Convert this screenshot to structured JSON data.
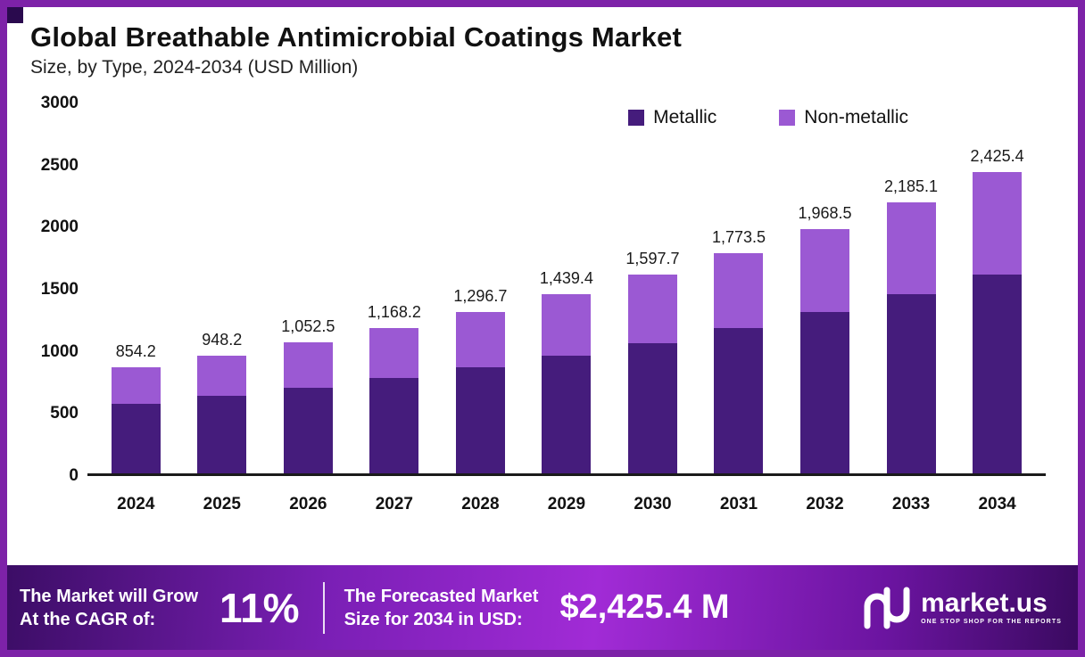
{
  "header": {
    "title": "Global Breathable Antimicrobial Coatings Market",
    "subtitle": "Size, by Type, 2024-2034 (USD Million)"
  },
  "legend": [
    {
      "label": "Metallic",
      "color": "#451c7c"
    },
    {
      "label": "Non-metallic",
      "color": "#9b59d3"
    }
  ],
  "chart_data": {
    "type": "bar",
    "stacked": true,
    "title": "Global Breathable Antimicrobial Coatings Market Size, by Type, 2024-2034 (USD Million)",
    "xlabel": "",
    "ylabel": "",
    "ylim": [
      0,
      3000
    ],
    "yticks": [
      0,
      500,
      1000,
      1500,
      2000,
      2500,
      3000
    ],
    "categories": [
      "2024",
      "2025",
      "2026",
      "2027",
      "2028",
      "2029",
      "2030",
      "2031",
      "2032",
      "2033",
      "2034"
    ],
    "series": [
      {
        "name": "Metallic",
        "color": "#451c7c",
        "values": [
          560,
          625,
          690,
          765,
          855,
          950,
          1050,
          1170,
          1300,
          1440,
          1600
        ]
      },
      {
        "name": "Non-metallic",
        "color": "#9b59d3",
        "values": [
          294.2,
          323.2,
          362.5,
          403.2,
          441.7,
          489.4,
          547.7,
          603.5,
          668.5,
          745.1,
          825.4
        ]
      }
    ],
    "totals": [
      854.2,
      948.2,
      1052.5,
      1168.2,
      1296.7,
      1439.4,
      1597.7,
      1773.5,
      1968.5,
      2185.1,
      2425.4
    ],
    "total_labels": [
      "854.2",
      "948.2",
      "1,052.5",
      "1,168.2",
      "1,296.7",
      "1,439.4",
      "1,597.7",
      "1,773.5",
      "1,968.5",
      "2,185.1",
      "2,425.4"
    ],
    "legend_position": "top-right",
    "grid": false
  },
  "banner": {
    "left_line1": "The Market will Grow",
    "left_line2": "At the CAGR of:",
    "cagr": "11%",
    "mid_line1": "The Forecasted Market",
    "mid_line2": "Size for 2034 in USD:",
    "forecast_value": "$2,425.4 M",
    "brand": "market.us",
    "brand_tagline": "ONE STOP SHOP FOR THE REPORTS"
  },
  "colors": {
    "frame_border": "#7d22a8",
    "metallic": "#451c7c",
    "non_metallic": "#9b59d3",
    "banner_gradient_start": "#3c0d66",
    "banner_gradient_mid": "#a12bd6",
    "banner_gradient_end": "#3a0a60"
  }
}
